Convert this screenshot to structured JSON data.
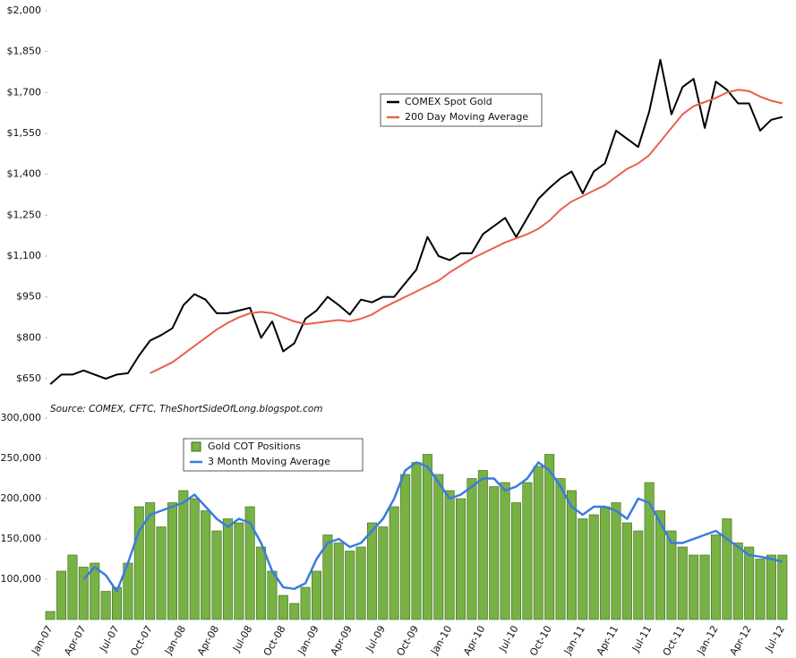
{
  "chart_data": [
    {
      "type": "line",
      "source": "Source: COMEX, CFTC, TheShortSideOfLong.blogspot.com",
      "ylim": [
        600,
        2000
      ],
      "yticks": [
        {
          "value": 650,
          "label": "$650"
        },
        {
          "value": 800,
          "label": "$800"
        },
        {
          "value": 950,
          "label": "$950"
        },
        {
          "value": 1100,
          "label": "$1,100"
        },
        {
          "value": 1250,
          "label": "$1,250"
        },
        {
          "value": 1400,
          "label": "$1,400"
        },
        {
          "value": 1550,
          "label": "$1,550"
        },
        {
          "value": 1700,
          "label": "$1,700"
        },
        {
          "value": 1850,
          "label": "$1,850"
        },
        {
          "value": 2000,
          "label": "$2,000"
        }
      ],
      "series": [
        {
          "name": "COMEX Spot Gold",
          "color": "#000000",
          "values": [
            630,
            665,
            665,
            680,
            665,
            650,
            665,
            670,
            735,
            790,
            810,
            835,
            920,
            960,
            940,
            890,
            890,
            900,
            910,
            800,
            860,
            750,
            780,
            870,
            900,
            950,
            920,
            885,
            940,
            930,
            950,
            950,
            1000,
            1050,
            1170,
            1100,
            1085,
            1110,
            1110,
            1180,
            1210,
            1240,
            1170,
            1240,
            1310,
            1350,
            1385,
            1410,
            1330,
            1410,
            1440,
            1560,
            1530,
            1500,
            1630,
            1820,
            1620,
            1720,
            1750,
            1570,
            1740,
            1710,
            1660,
            1660,
            1560,
            1600,
            1610
          ]
        },
        {
          "name": "200 Day Moving Average",
          "color": "#e8604c",
          "values": [
            null,
            null,
            null,
            null,
            null,
            null,
            null,
            null,
            null,
            670,
            690,
            710,
            740,
            770,
            800,
            830,
            855,
            875,
            890,
            895,
            890,
            875,
            860,
            850,
            855,
            860,
            865,
            860,
            870,
            885,
            910,
            930,
            950,
            970,
            990,
            1010,
            1040,
            1065,
            1090,
            1110,
            1130,
            1150,
            1165,
            1180,
            1200,
            1230,
            1270,
            1300,
            1320,
            1340,
            1360,
            1390,
            1420,
            1440,
            1470,
            1520,
            1570,
            1620,
            1650,
            1665,
            1680,
            1700,
            1710,
            1705,
            1685,
            1670,
            1660
          ]
        }
      ]
    },
    {
      "type": "bar",
      "categories": [
        "Jan-07",
        null,
        null,
        "Apr-07",
        null,
        null,
        "Jul-07",
        null,
        null,
        "Oct-07",
        null,
        null,
        "Jan-08",
        null,
        null,
        "Apr-08",
        null,
        null,
        "Jul-08",
        null,
        null,
        "Oct-08",
        null,
        null,
        "Jan-09",
        null,
        null,
        "Apr-09",
        null,
        null,
        "Jul-09",
        null,
        null,
        "Oct-09",
        null,
        null,
        "Jan-10",
        null,
        null,
        "Apr-10",
        null,
        null,
        "Jul-10",
        null,
        null,
        "Oct-10",
        null,
        null,
        "Jan-11",
        null,
        null,
        "Apr-11",
        null,
        null,
        "Jul-11",
        null,
        null,
        "Oct-11",
        null,
        null,
        "Jan-12",
        null,
        null,
        "Apr-12",
        null,
        null,
        "Jul-12"
      ],
      "ylim": [
        50000,
        300000
      ],
      "yticks": [
        {
          "value": 100000,
          "label": "100,000"
        },
        {
          "value": 150000,
          "label": "150,000"
        },
        {
          "value": 200000,
          "label": "200,000"
        },
        {
          "value": 250000,
          "label": "250,000"
        },
        {
          "value": 300000,
          "label": "300,000"
        }
      ],
      "series": [
        {
          "name": "Gold COT Positions",
          "color": "#78b144",
          "values": [
            60000,
            110000,
            130000,
            115000,
            120000,
            85000,
            90000,
            120000,
            190000,
            195000,
            165000,
            195000,
            210000,
            200000,
            185000,
            160000,
            175000,
            170000,
            190000,
            140000,
            110000,
            80000,
            70000,
            90000,
            110000,
            155000,
            145000,
            135000,
            140000,
            170000,
            165000,
            190000,
            230000,
            245000,
            255000,
            230000,
            210000,
            200000,
            225000,
            235000,
            215000,
            220000,
            195000,
            220000,
            240000,
            255000,
            225000,
            210000,
            175000,
            180000,
            190000,
            195000,
            170000,
            160000,
            220000,
            185000,
            160000,
            140000,
            130000,
            130000,
            155000,
            175000,
            145000,
            140000,
            125000,
            130000,
            130000
          ]
        },
        {
          "name": "3 Month Moving Average",
          "type": "line",
          "color": "#3a7be0",
          "values": [
            null,
            null,
            null,
            100000,
            115000,
            105000,
            85000,
            120000,
            160000,
            180000,
            185000,
            190000,
            195000,
            205000,
            190000,
            175000,
            165000,
            175000,
            170000,
            145000,
            110000,
            90000,
            88000,
            95000,
            125000,
            145000,
            150000,
            140000,
            145000,
            160000,
            175000,
            200000,
            235000,
            245000,
            240000,
            220000,
            200000,
            205000,
            215000,
            225000,
            225000,
            210000,
            215000,
            225000,
            245000,
            235000,
            215000,
            190000,
            180000,
            190000,
            190000,
            185000,
            175000,
            200000,
            195000,
            170000,
            145000,
            145000,
            150000,
            155000,
            160000,
            150000,
            140000,
            130000,
            128000,
            125000,
            122000
          ]
        }
      ]
    }
  ]
}
